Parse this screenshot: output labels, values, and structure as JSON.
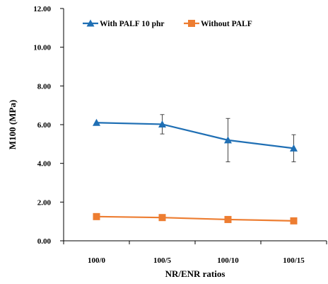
{
  "chart_data": {
    "type": "line",
    "categories": [
      "100/0",
      "100/5",
      "100/10",
      "100/15"
    ],
    "series": [
      {
        "name": "With PALF 10 phr",
        "values": [
          6.1,
          6.02,
          5.2,
          4.78
        ],
        "error": [
          0.0,
          0.5,
          1.12,
          0.7
        ],
        "color": "#1f6fb4",
        "marker": "triangle"
      },
      {
        "name": "Without PALF",
        "values": [
          1.25,
          1.2,
          1.1,
          1.03
        ],
        "error": [
          0.0,
          0.0,
          0.0,
          0.0
        ],
        "color": "#ed7d31",
        "marker": "square"
      }
    ],
    "yticks": [
      "0.00",
      "2.00",
      "4.00",
      "6.00",
      "8.00",
      "10.00",
      "12.00"
    ],
    "ylim": [
      0,
      12
    ],
    "xlabel": "NR/ENR ratios",
    "ylabel": "M100 (MPa)",
    "grid": false,
    "legend_position": "top-left"
  }
}
